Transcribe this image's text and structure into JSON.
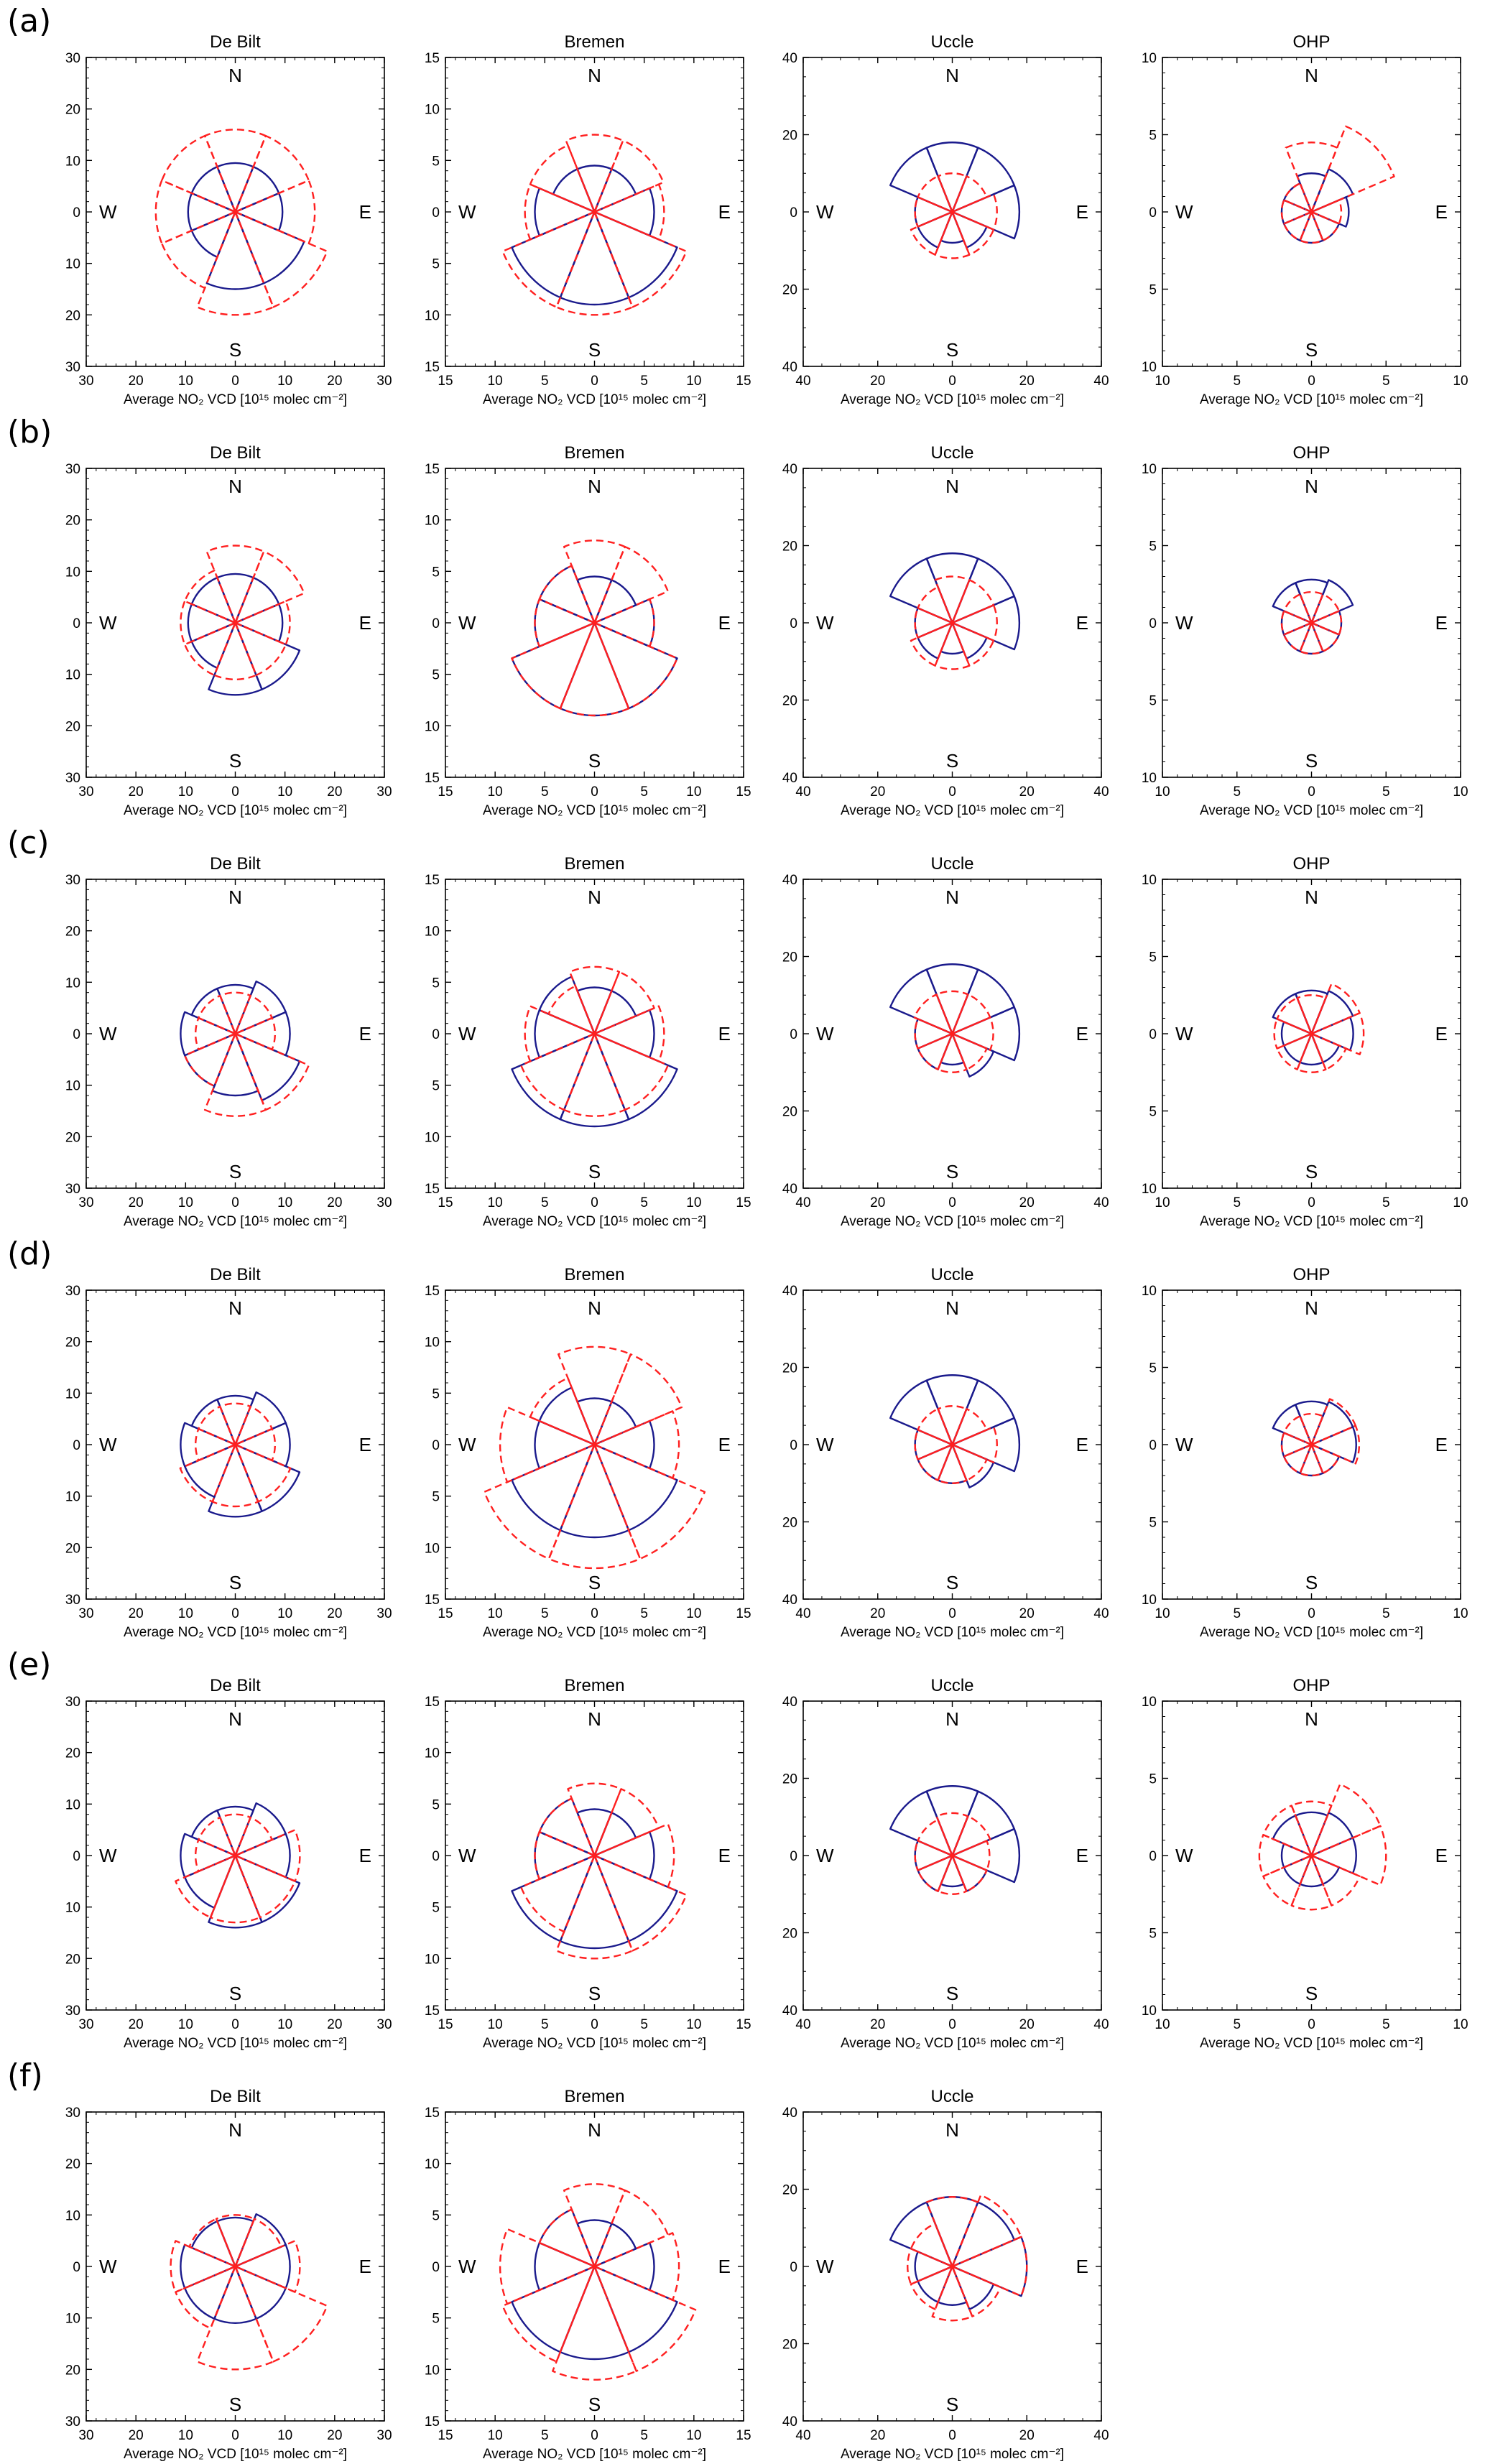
{
  "figure": {
    "xlabel": "Average NO₂ VCD [10¹⁵ molec cm⁻²]",
    "compass": {
      "n": "N",
      "e": "E",
      "s": "S",
      "w": "W"
    },
    "colors": {
      "model": "#1a1a8c",
      "obs": "#ff2020",
      "axes": "#000000"
    },
    "line_styles": {
      "model": "solid",
      "obs": "dashed"
    },
    "directions": [
      "N",
      "NE",
      "E",
      "SE",
      "S",
      "SW",
      "W",
      "NW"
    ],
    "sector_half_width_deg": 22.5
  },
  "chart_data": [
    {
      "row": "(a)",
      "title": "De Bilt",
      "type": "polar-rose",
      "max": 30,
      "ticks": [
        0,
        10,
        20,
        30
      ],
      "series": [
        {
          "values": [
            9.5,
            9.5,
            9.5,
            15,
            15,
            9.5,
            9.5,
            9.5
          ]
        },
        {
          "values": [
            16,
            16,
            16,
            20,
            20,
            16,
            16,
            16
          ]
        }
      ]
    },
    {
      "row": "(a)",
      "title": "Bremen",
      "type": "polar-rose",
      "max": 15,
      "ticks": [
        0,
        5,
        10,
        15
      ],
      "series": [
        {
          "values": [
            4.5,
            4.5,
            6,
            9,
            9,
            9,
            6,
            4.5
          ]
        },
        {
          "values": [
            7.5,
            7.5,
            7,
            10,
            10,
            10,
            7,
            7
          ]
        }
      ]
    },
    {
      "row": "(a)",
      "title": "Uccle",
      "type": "polar-rose",
      "max": 40,
      "ticks": [
        0,
        20,
        40
      ],
      "series": [
        {
          "values": [
            18,
            18,
            18,
            10,
            8,
            10,
            10,
            18
          ]
        },
        {
          "values": [
            10,
            10,
            12,
            12,
            12,
            12,
            10,
            10
          ]
        }
      ]
    },
    {
      "row": "(a)",
      "title": "OHP",
      "type": "polar-rose",
      "max": 10,
      "ticks": [
        0,
        5,
        10
      ],
      "series": [
        {
          "values": [
            2.5,
            3,
            2.5,
            2,
            2,
            2,
            2,
            2
          ]
        },
        {
          "values": [
            4.5,
            6,
            2,
            2,
            2,
            2,
            2,
            2
          ]
        }
      ]
    },
    {
      "row": "(b)",
      "title": "De Bilt",
      "type": "polar-rose",
      "max": 30,
      "ticks": [
        0,
        10,
        20,
        30
      ],
      "series": [
        {
          "values": [
            9.5,
            9.5,
            9.5,
            14,
            14,
            9.5,
            9.5,
            9.5
          ]
        },
        {
          "values": [
            15,
            15,
            11,
            11,
            11,
            11,
            11,
            11
          ]
        }
      ]
    },
    {
      "row": "(b)",
      "title": "Bremen",
      "type": "polar-rose",
      "max": 15,
      "ticks": [
        0,
        5,
        10,
        15
      ],
      "series": [
        {
          "values": [
            4.5,
            4.5,
            6,
            9,
            9,
            9,
            6,
            6
          ]
        },
        {
          "values": [
            8,
            8,
            6,
            9,
            9,
            9,
            6,
            6
          ]
        }
      ]
    },
    {
      "row": "(b)",
      "title": "Uccle",
      "type": "polar-rose",
      "max": 40,
      "ticks": [
        0,
        20,
        40
      ],
      "series": [
        {
          "values": [
            18,
            18,
            18,
            10,
            8,
            10,
            10,
            18
          ]
        },
        {
          "values": [
            12,
            12,
            12,
            12,
            12,
            12,
            10,
            10
          ]
        }
      ]
    },
    {
      "row": "(b)",
      "title": "OHP",
      "type": "polar-rose",
      "max": 10,
      "ticks": [
        0,
        5,
        10
      ],
      "series": [
        {
          "values": [
            2.8,
            3,
            2,
            2,
            2,
            2,
            2,
            2.8
          ]
        },
        {
          "values": [
            2,
            2,
            2,
            2,
            2,
            2,
            2,
            2
          ]
        }
      ]
    },
    {
      "row": "(c)",
      "title": "De Bilt",
      "type": "polar-rose",
      "max": 30,
      "ticks": [
        0,
        10,
        20,
        30
      ],
      "series": [
        {
          "values": [
            9.5,
            11,
            11,
            14,
            12,
            11,
            11,
            9.5
          ]
        },
        {
          "values": [
            8,
            8,
            8,
            16,
            16,
            11,
            8,
            8
          ]
        }
      ]
    },
    {
      "row": "(c)",
      "title": "Bremen",
      "type": "polar-rose",
      "max": 15,
      "ticks": [
        0,
        5,
        10,
        15
      ],
      "series": [
        {
          "values": [
            4.5,
            4.5,
            6,
            9,
            9,
            9,
            6,
            6
          ]
        },
        {
          "values": [
            6.5,
            6.5,
            7,
            8,
            8,
            8,
            7,
            5
          ]
        }
      ]
    },
    {
      "row": "(c)",
      "title": "Uccle",
      "type": "polar-rose",
      "max": 40,
      "ticks": [
        0,
        20,
        40
      ],
      "series": [
        {
          "values": [
            18,
            18,
            18,
            12,
            8,
            10,
            10,
            18
          ]
        },
        {
          "values": [
            11,
            11,
            11,
            10,
            10,
            10,
            10,
            11
          ]
        }
      ]
    },
    {
      "row": "(c)",
      "title": "OHP",
      "type": "polar-rose",
      "max": 10,
      "ticks": [
        0,
        5,
        10
      ],
      "series": [
        {
          "values": [
            2.8,
            3,
            2.8,
            2,
            2,
            2,
            2,
            2.8
          ]
        },
        {
          "values": [
            2.5,
            3.5,
            3.5,
            2.5,
            2.5,
            2.5,
            2.5,
            2.5
          ]
        }
      ]
    },
    {
      "row": "(d)",
      "title": "De Bilt",
      "type": "polar-rose",
      "max": 30,
      "ticks": [
        0,
        10,
        20,
        30
      ],
      "series": [
        {
          "values": [
            9.5,
            11,
            11,
            14,
            14,
            11,
            11,
            9.5
          ]
        },
        {
          "values": [
            8,
            8,
            8,
            12,
            12,
            12,
            8,
            8
          ]
        }
      ]
    },
    {
      "row": "(d)",
      "title": "Bremen",
      "type": "polar-rose",
      "max": 15,
      "ticks": [
        0,
        5,
        10,
        15
      ],
      "series": [
        {
          "values": [
            4.5,
            4.5,
            6,
            9,
            9,
            9,
            6,
            6
          ]
        },
        {
          "values": [
            9.5,
            9.5,
            8.5,
            12,
            12,
            12,
            9.5,
            7
          ]
        }
      ]
    },
    {
      "row": "(d)",
      "title": "Uccle",
      "type": "polar-rose",
      "max": 40,
      "ticks": [
        0,
        20,
        40
      ],
      "series": [
        {
          "values": [
            18,
            18,
            18,
            12,
            10,
            10,
            10,
            18
          ]
        },
        {
          "values": [
            10,
            10,
            12,
            10,
            10,
            10,
            10,
            10
          ]
        }
      ]
    },
    {
      "row": "(d)",
      "title": "OHP",
      "type": "polar-rose",
      "max": 10,
      "ticks": [
        0,
        5,
        10
      ],
      "series": [
        {
          "values": [
            2.8,
            3,
            3,
            2,
            2,
            2,
            2,
            2.8
          ]
        },
        {
          "values": [
            2,
            3.2,
            3.2,
            2,
            2,
            2,
            2,
            2
          ]
        }
      ]
    },
    {
      "row": "(e)",
      "title": "De Bilt",
      "type": "polar-rose",
      "max": 30,
      "ticks": [
        0,
        10,
        20,
        30
      ],
      "series": [
        {
          "values": [
            9.5,
            11,
            11,
            14,
            14,
            11,
            11,
            9.5
          ]
        },
        {
          "values": [
            8,
            8,
            13,
            13,
            13,
            13,
            8,
            8
          ]
        }
      ]
    },
    {
      "row": "(e)",
      "title": "Bremen",
      "type": "polar-rose",
      "max": 15,
      "ticks": [
        0,
        5,
        10,
        15
      ],
      "series": [
        {
          "values": [
            4.5,
            4.5,
            6,
            9,
            9,
            9,
            6,
            6
          ]
        },
        {
          "values": [
            7,
            7,
            8,
            10,
            10,
            8,
            6,
            6
          ]
        }
      ]
    },
    {
      "row": "(e)",
      "title": "Uccle",
      "type": "polar-rose",
      "max": 40,
      "ticks": [
        0,
        20,
        40
      ],
      "series": [
        {
          "values": [
            18,
            18,
            18,
            10,
            8,
            10,
            10,
            18
          ]
        },
        {
          "values": [
            11,
            11,
            10,
            10,
            10,
            10,
            10,
            10
          ]
        }
      ]
    },
    {
      "row": "(e)",
      "title": "OHP",
      "type": "polar-rose",
      "max": 10,
      "ticks": [
        0,
        5,
        10
      ],
      "series": [
        {
          "values": [
            2.8,
            3,
            3,
            2,
            2,
            2,
            2,
            2.8
          ]
        },
        {
          "values": [
            3.5,
            5,
            5,
            3.5,
            3.5,
            3.5,
            3.5,
            3.5
          ]
        }
      ]
    },
    {
      "row": "(f)",
      "title": "De Bilt",
      "type": "polar-rose",
      "max": 30,
      "ticks": [
        0,
        10,
        20,
        30
      ],
      "series": [
        {
          "values": [
            9.5,
            11,
            11,
            11,
            11,
            11,
            11,
            9.5
          ]
        },
        {
          "values": [
            10,
            10,
            13,
            20,
            20,
            13,
            13,
            10
          ]
        }
      ]
    },
    {
      "row": "(f)",
      "title": "Bremen",
      "type": "polar-rose",
      "max": 15,
      "ticks": [
        0,
        5,
        10,
        15
      ],
      "series": [
        {
          "values": [
            4.5,
            4.5,
            6,
            9,
            9,
            9,
            6,
            6
          ]
        },
        {
          "values": [
            8,
            8,
            8.5,
            11,
            11,
            10,
            9.5,
            6
          ]
        }
      ]
    },
    {
      "row": "(f)",
      "title": "Uccle",
      "type": "polar-rose",
      "max": 40,
      "ticks": [
        0,
        20,
        40
      ],
      "series": [
        {
          "values": [
            18,
            18,
            20,
            12,
            10,
            10,
            10,
            18
          ]
        },
        {
          "values": [
            18,
            20,
            20,
            14,
            14,
            12,
            12,
            12
          ]
        }
      ]
    }
  ]
}
